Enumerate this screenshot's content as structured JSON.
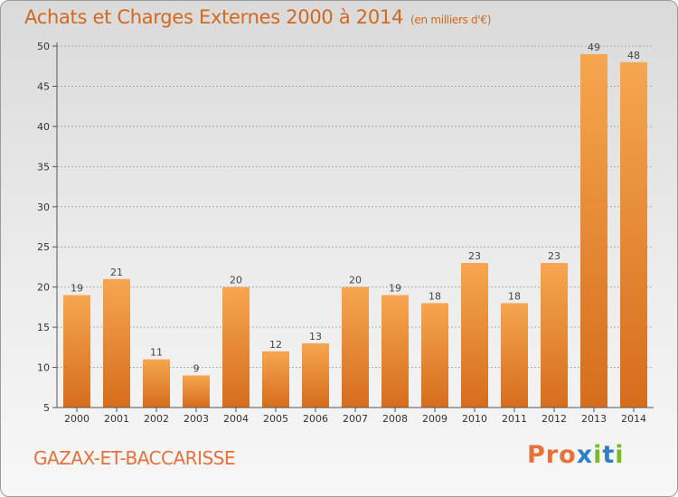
{
  "header": {
    "title": "Achats et Charges Externes 2000 à 2014",
    "subtitle": "(en milliers d'€)"
  },
  "footer": {
    "place": "GAZAX-ET-BACCARISSE",
    "logo": "Proxiti"
  },
  "colors": {
    "bar_top": "#f6a650",
    "bar_bottom": "#d56d1c",
    "axis": "#555555",
    "grid": "#aaaaaa",
    "title": "#d2691e",
    "logo_letters": [
      "#e8703a",
      "#e8703a",
      "#e8703a",
      "#2e7fc8",
      "#7ab82e",
      "#2e7fc8",
      "#7ab82e"
    ]
  },
  "chart_data": {
    "type": "bar",
    "title": "Achats et Charges Externes 2000 à 2014",
    "subtitle": "(en milliers d'€)",
    "xlabel": "",
    "ylabel": "",
    "categories": [
      "2000",
      "2001",
      "2002",
      "2003",
      "2004",
      "2005",
      "2006",
      "2007",
      "2008",
      "2009",
      "2010",
      "2011",
      "2012",
      "2013",
      "2014"
    ],
    "values": [
      19,
      21,
      11,
      9,
      20,
      12,
      13,
      20,
      19,
      18,
      23,
      18,
      23,
      49,
      48
    ],
    "ylim": [
      5,
      50
    ],
    "yticks": [
      5,
      10,
      15,
      20,
      25,
      30,
      35,
      40,
      45,
      50
    ],
    "grid": true
  }
}
